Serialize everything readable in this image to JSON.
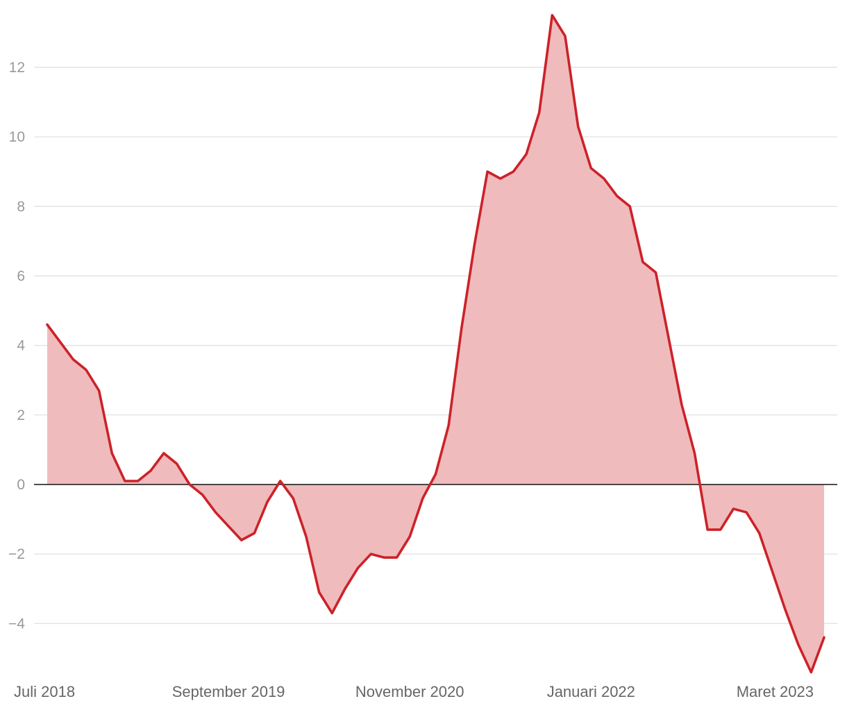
{
  "chart_data": {
    "type": "area",
    "title": "",
    "xlabel": "",
    "ylabel": "",
    "ylim": [
      -5.5,
      13.6
    ],
    "yticks": [
      12,
      10,
      8,
      6,
      4,
      2,
      0,
      -2,
      -4
    ],
    "y_tick_labels": [
      "12",
      "10",
      "8",
      "6",
      "4",
      "2",
      "0",
      "−2",
      "−4"
    ],
    "x_tick_labels": [
      {
        "label": "Juli 2018",
        "x": "2018-07"
      },
      {
        "label": "September 2019",
        "x": "2019-09"
      },
      {
        "label": "November 2020",
        "x": "2020-11"
      },
      {
        "label": "Januari 2022",
        "x": "2022-01"
      },
      {
        "label": "Maret 2023",
        "x": "2023-03"
      }
    ],
    "grid": true,
    "colors": {
      "line": "#cc2229",
      "fill": "#f0bbbd",
      "grid": "#dddddd",
      "zero_line": "#111111"
    },
    "series": [
      {
        "x": [
          "2018-07",
          "2018-08",
          "2018-09",
          "2018-10",
          "2018-11",
          "2018-12",
          "2019-01",
          "2019-02",
          "2019-03",
          "2019-04",
          "2019-05",
          "2019-06",
          "2019-07",
          "2019-08",
          "2019-09",
          "2019-10",
          "2019-11",
          "2019-12",
          "2020-01",
          "2020-02",
          "2020-03",
          "2020-04",
          "2020-05",
          "2020-06",
          "2020-07",
          "2020-08",
          "2020-09",
          "2020-10",
          "2020-11",
          "2020-12",
          "2021-01",
          "2021-02",
          "2021-03",
          "2021-04",
          "2021-05",
          "2021-06",
          "2021-07",
          "2021-08",
          "2021-09",
          "2021-10",
          "2021-11",
          "2021-12",
          "2022-01",
          "2022-02",
          "2022-03",
          "2022-04",
          "2022-05",
          "2022-06",
          "2022-07",
          "2022-08",
          "2022-09",
          "2022-10",
          "2022-11",
          "2022-12",
          "2023-01",
          "2023-02",
          "2023-03",
          "2023-04",
          "2023-05",
          "2023-06",
          "2023-07"
        ],
        "values": [
          4.6,
          4.1,
          3.6,
          3.3,
          2.7,
          0.9,
          0.1,
          0.1,
          0.4,
          0.9,
          0.6,
          0.0,
          -0.3,
          -0.8,
          -1.2,
          -1.6,
          -1.4,
          -0.5,
          0.1,
          -0.4,
          -1.5,
          -3.1,
          -3.7,
          -3.0,
          -2.4,
          -2.0,
          -2.1,
          -2.1,
          -1.5,
          -0.4,
          0.3,
          1.7,
          4.5,
          6.9,
          9.0,
          8.8,
          9.0,
          9.5,
          10.7,
          13.5,
          12.9,
          10.3,
          9.1,
          8.8,
          8.3,
          8.0,
          6.4,
          6.1,
          4.2,
          2.3,
          0.9,
          -1.3,
          -1.3,
          -0.7,
          -0.8,
          -1.4,
          -2.5,
          -3.6,
          -4.6,
          -5.4,
          -4.4
        ]
      }
    ]
  }
}
